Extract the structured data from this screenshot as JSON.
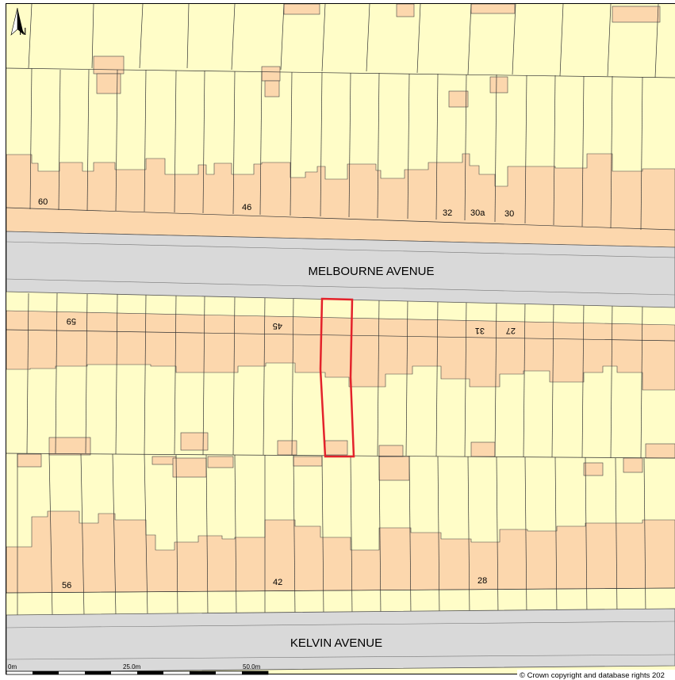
{
  "map": {
    "north_label": "N",
    "roads": {
      "top": "MELBOURNE AVENUE",
      "bottom": "KELVIN AVENUE"
    },
    "house_numbers": {
      "n60": "60",
      "n46": "46",
      "n32": "32",
      "n30a": "30a",
      "n30": "30",
      "n59": "59",
      "n45": "45",
      "n31": "31",
      "n27": "27",
      "n56": "56",
      "n42": "42",
      "n28": "28"
    },
    "scale_bar": {
      "zero": "0m",
      "mid": "25.0m",
      "end": "50.0m"
    },
    "copyright": "© Crown copyright and database rights 202"
  },
  "colors": {
    "plot": "#fffdc8",
    "building": "#fcd7ad",
    "road": "#d9d9d9",
    "outline": "#333333",
    "boundary": "#e3222b"
  }
}
